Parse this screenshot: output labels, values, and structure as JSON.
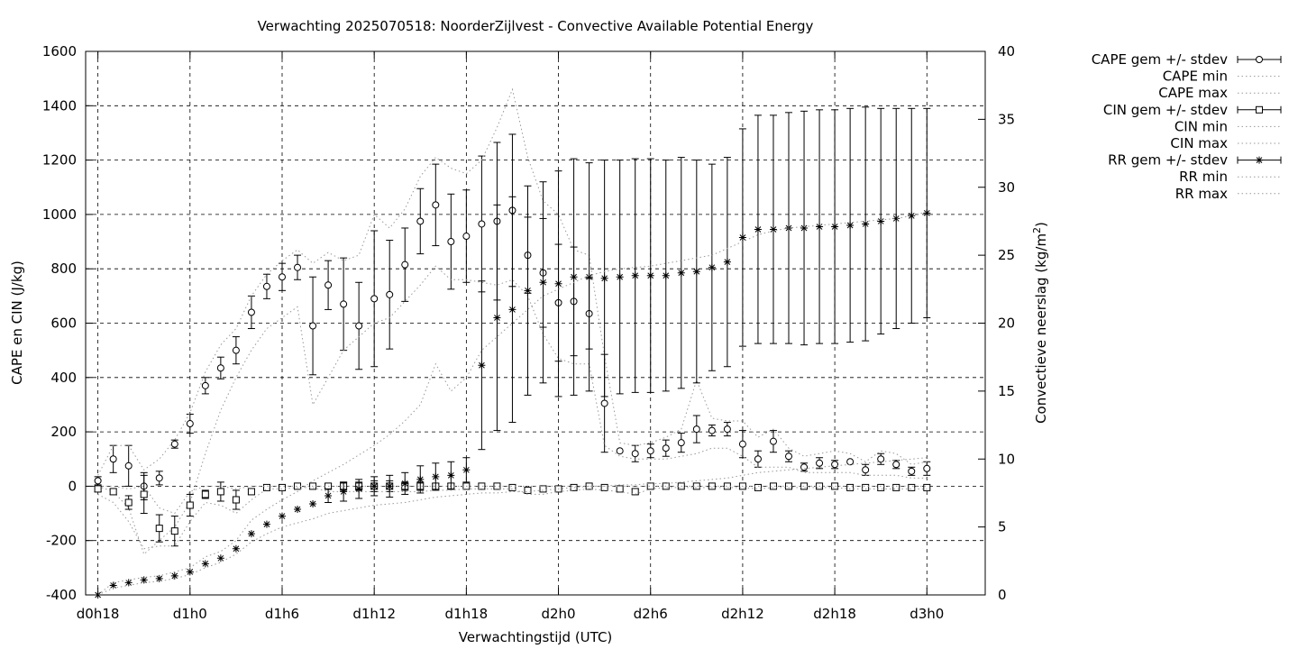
{
  "chart_data": {
    "type": "line",
    "title": "Verwachting 2025070518: NoorderZijlvest - Convective Available Potential Energy",
    "xlabel": "Verwachtingstijd (UTC)",
    "ylabel": "CAPE en CIN (J/kg)",
    "y2label": "Convectieve neerslag (kg/m",
    "y2label_sup": "2",
    "y2label_end": ")",
    "x_unit": "hours after d0h18",
    "xlim": [
      -0.8,
      57.8
    ],
    "ylim": [
      -400,
      1600
    ],
    "y2lim": [
      0,
      40
    ],
    "grid": true,
    "legend_position": "outside-right",
    "x_ticks": [
      {
        "x": 0,
        "label": "d0h18"
      },
      {
        "x": 6,
        "label": "d1h0"
      },
      {
        "x": 12,
        "label": "d1h6"
      },
      {
        "x": 18,
        "label": "d1h12"
      },
      {
        "x": 24,
        "label": "d1h18"
      },
      {
        "x": 30,
        "label": "d2h0"
      },
      {
        "x": 36,
        "label": "d2h6"
      },
      {
        "x": 42,
        "label": "d2h12"
      },
      {
        "x": 48,
        "label": "d2h18"
      },
      {
        "x": 54,
        "label": "d3h0"
      }
    ],
    "y_ticks": [
      "-400",
      "-200",
      "0",
      "200",
      "400",
      "600",
      "800",
      "1000",
      "1200",
      "1400",
      "1600"
    ],
    "y2_ticks": [
      "0",
      "5",
      "10",
      "15",
      "20",
      "25",
      "30",
      "35",
      "40"
    ],
    "legend": [
      "CAPE gem +/- stdev",
      "CAPE min",
      "CAPE max",
      "CIN gem +/- stdev",
      "CIN min",
      "CIN max",
      "RR gem +/- stdev",
      "RR min",
      "RR max"
    ],
    "series": [
      {
        "name": "CAPE gem +/- stdev",
        "axis": "y",
        "marker": "circle",
        "x": [
          0,
          1,
          2,
          3,
          4,
          5,
          6,
          7,
          8,
          9,
          10,
          11,
          12,
          13,
          14,
          15,
          16,
          17,
          18,
          19,
          20,
          21,
          22,
          23,
          24,
          25,
          26,
          27,
          28,
          29,
          30,
          31,
          32,
          33,
          34,
          35,
          36,
          37,
          38,
          39,
          40,
          41,
          42,
          43,
          44,
          45,
          46,
          47,
          48,
          49,
          50,
          51,
          52,
          53,
          54
        ],
        "y": [
          20,
          100,
          75,
          0,
          30,
          155,
          230,
          370,
          435,
          500,
          640,
          735,
          770,
          805,
          590,
          740,
          670,
          590,
          690,
          705,
          815,
          975,
          1035,
          900,
          920,
          965,
          975,
          1015,
          850,
          785,
          675,
          680,
          635,
          305,
          130,
          120,
          130,
          140,
          160,
          210,
          205,
          210,
          155,
          100,
          165,
          110,
          70,
          85,
          80,
          90,
          60,
          100,
          80,
          55,
          65
        ],
        "err": [
          15,
          50,
          75,
          50,
          25,
          15,
          35,
          30,
          40,
          50,
          60,
          45,
          50,
          45,
          180,
          90,
          170,
          160,
          250,
          200,
          135,
          120,
          150,
          175,
          170,
          250,
          290,
          280,
          140,
          200,
          215,
          200,
          130,
          180,
          0,
          30,
          25,
          30,
          35,
          50,
          20,
          25,
          50,
          30,
          40,
          20,
          15,
          20,
          15,
          0,
          20,
          20,
          15,
          15,
          25
        ]
      },
      {
        "name": "CAPE min",
        "axis": "y",
        "marker": "none",
        "x": [
          0,
          1,
          2,
          3,
          4,
          5,
          6,
          7,
          8,
          9,
          10,
          11,
          12,
          13,
          14,
          15,
          16,
          17,
          18,
          19,
          20,
          21,
          22,
          23,
          24,
          25,
          26,
          27,
          28,
          29,
          30,
          31,
          32,
          33,
          34,
          35,
          36,
          37,
          38,
          39,
          40,
          41,
          42,
          43,
          44,
          45,
          46,
          47,
          48,
          49,
          50,
          51,
          52,
          53,
          54
        ],
        "y": [
          0,
          -20,
          -80,
          -250,
          -200,
          -150,
          -60,
          120,
          280,
          400,
          500,
          580,
          620,
          660,
          300,
          400,
          500,
          550,
          600,
          620,
          680,
          740,
          810,
          760,
          760,
          750,
          740,
          760,
          700,
          560,
          470,
          450,
          450,
          150,
          110,
          100,
          100,
          100,
          110,
          120,
          140,
          140,
          110,
          70,
          70,
          70,
          50,
          50,
          50,
          50,
          40,
          40,
          40,
          30,
          30
        ]
      },
      {
        "name": "CAPE max",
        "axis": "y",
        "marker": "none",
        "x": [
          0,
          1,
          2,
          3,
          4,
          5,
          6,
          7,
          8,
          9,
          10,
          11,
          12,
          13,
          14,
          15,
          16,
          17,
          18,
          19,
          20,
          21,
          22,
          23,
          24,
          25,
          26,
          27,
          28,
          29,
          30,
          31,
          32,
          33,
          34,
          35,
          36,
          37,
          38,
          39,
          40,
          41,
          42,
          43,
          44,
          45,
          46,
          47,
          48,
          49,
          50,
          51,
          52,
          53,
          54
        ],
        "y": [
          40,
          150,
          150,
          60,
          100,
          170,
          270,
          420,
          520,
          580,
          700,
          780,
          830,
          870,
          820,
          860,
          830,
          850,
          1000,
          950,
          1020,
          1140,
          1210,
          1170,
          1150,
          1200,
          1320,
          1460,
          1210,
          1050,
          1000,
          870,
          850,
          480,
          160,
          150,
          160,
          180,
          210,
          390,
          250,
          240,
          240,
          180,
          210,
          140,
          110,
          120,
          130,
          120,
          90,
          130,
          120,
          80,
          90
        ]
      },
      {
        "name": "CIN gem +/- stdev",
        "axis": "y",
        "marker": "square",
        "x": [
          0,
          1,
          2,
          3,
          4,
          5,
          6,
          7,
          8,
          9,
          10,
          11,
          12,
          13,
          14,
          15,
          16,
          17,
          18,
          19,
          20,
          21,
          22,
          23,
          24,
          25,
          26,
          27,
          28,
          29,
          30,
          31,
          32,
          33,
          34,
          35,
          36,
          37,
          38,
          39,
          40,
          41,
          42,
          43,
          44,
          45,
          46,
          47,
          48,
          49,
          50,
          51,
          52,
          53,
          54
        ],
        "y": [
          -10,
          -20,
          -60,
          -30,
          -155,
          -165,
          -70,
          -30,
          -20,
          -50,
          -20,
          -5,
          -5,
          0,
          0,
          0,
          0,
          0,
          0,
          0,
          0,
          0,
          0,
          0,
          0,
          0,
          0,
          -5,
          -15,
          -10,
          -10,
          -5,
          0,
          -5,
          -10,
          -20,
          0,
          0,
          0,
          0,
          0,
          0,
          0,
          -5,
          0,
          0,
          0,
          0,
          0,
          -5,
          -5,
          -5,
          -5,
          -5,
          -5
        ],
        "err": [
          10,
          10,
          25,
          70,
          50,
          55,
          40,
          15,
          35,
          35,
          10,
          0,
          0,
          0,
          0,
          10,
          15,
          15,
          20,
          20,
          15,
          15,
          10,
          10,
          0,
          0,
          0,
          0,
          5,
          5,
          5,
          5,
          0,
          0,
          0,
          10,
          0,
          0,
          0,
          0,
          0,
          0,
          0,
          0,
          0,
          0,
          0,
          0,
          0,
          0,
          0,
          0,
          0,
          0,
          0
        ]
      },
      {
        "name": "CIN min",
        "axis": "y",
        "marker": "none",
        "x": [
          0,
          1,
          2,
          3,
          4,
          5,
          6,
          7,
          8,
          9,
          10,
          11,
          12,
          13,
          14,
          15,
          16,
          17,
          18,
          19,
          20,
          21,
          22,
          23,
          24,
          25,
          26,
          27,
          28,
          29,
          30,
          31,
          32,
          33,
          34,
          35,
          36,
          37,
          38,
          39,
          40,
          41,
          42,
          43,
          44,
          45,
          46,
          47,
          48,
          49,
          50,
          51,
          52,
          53,
          54
        ],
        "y": [
          -30,
          -60,
          -130,
          -230,
          -220,
          -220,
          -130,
          -60,
          -70,
          -100,
          -50,
          -10,
          -10,
          -5,
          -5,
          -20,
          -20,
          -20,
          -20,
          -20,
          -20,
          -20,
          -15,
          -15,
          -10,
          -10,
          -10,
          -10,
          -30,
          -30,
          -20,
          -15,
          -10,
          -15,
          -20,
          -30,
          -10,
          -5,
          -5,
          -5,
          -5,
          -5,
          -5,
          -10,
          -5,
          -5,
          -5,
          -5,
          -5,
          -10,
          -10,
          -10,
          -10,
          -10,
          -10
        ]
      },
      {
        "name": "CIN max",
        "axis": "y",
        "marker": "none",
        "x": [
          0,
          1,
          2,
          3,
          4,
          5,
          6,
          7,
          8,
          9,
          10,
          11,
          12,
          13,
          14,
          15,
          16,
          17,
          18,
          19,
          20,
          21,
          22,
          23,
          24,
          25,
          26,
          27,
          28,
          29,
          30,
          31,
          32,
          33,
          34,
          35,
          36,
          37,
          38,
          39,
          40,
          41,
          42,
          43,
          44,
          45,
          46,
          47,
          48,
          49,
          50,
          51,
          52,
          53,
          54
        ],
        "y": [
          0,
          0,
          -10,
          0,
          -80,
          -100,
          -20,
          0,
          0,
          -10,
          0,
          0,
          0,
          0,
          0,
          0,
          0,
          0,
          0,
          0,
          0,
          0,
          0,
          0,
          0,
          0,
          0,
          0,
          0,
          0,
          0,
          0,
          0,
          0,
          0,
          0,
          0,
          0,
          0,
          0,
          0,
          0,
          0,
          0,
          0,
          0,
          0,
          0,
          0,
          0,
          0,
          0,
          0,
          0,
          0
        ]
      },
      {
        "name": "RR gem +/- stdev",
        "axis": "y2",
        "marker": "star",
        "x": [
          0,
          1,
          2,
          3,
          4,
          5,
          6,
          7,
          8,
          9,
          10,
          11,
          12,
          13,
          14,
          15,
          16,
          17,
          18,
          19,
          20,
          21,
          22,
          23,
          24,
          25,
          26,
          27,
          28,
          29,
          30,
          31,
          32,
          33,
          34,
          35,
          36,
          37,
          38,
          39,
          40,
          41,
          42,
          43,
          44,
          45,
          46,
          47,
          48,
          49,
          50,
          51,
          52,
          53,
          54
        ],
        "y": [
          0,
          0.7,
          0.9,
          1.1,
          1.2,
          1.4,
          1.7,
          2.3,
          2.7,
          3.4,
          4.5,
          5.2,
          5.8,
          6.3,
          6.7,
          7.3,
          7.6,
          7.8,
          8.0,
          8.0,
          8.2,
          8.5,
          8.7,
          8.8,
          9.2,
          16.9,
          20.4,
          21.0,
          22.4,
          23.0,
          22.9,
          23.4,
          23.4,
          23.3,
          23.4,
          23.5,
          23.5,
          23.5,
          23.7,
          23.8,
          24.1,
          24.5,
          26.3,
          26.9,
          26.9,
          27.0,
          27.0,
          27.1,
          27.1,
          27.2,
          27.3,
          27.5,
          27.7,
          27.9,
          28.1
        ],
        "err": [
          0,
          0,
          0,
          0,
          0,
          0,
          0,
          0,
          0,
          0,
          0,
          0,
          0,
          0,
          0,
          0.5,
          0.7,
          0.7,
          0.7,
          0.8,
          0.8,
          1.0,
          1.0,
          1.0,
          0.9,
          6.2,
          8.3,
          8.3,
          7.7,
          7.4,
          8.3,
          8.7,
          8.4,
          8.7,
          8.6,
          8.6,
          8.6,
          8.5,
          8.5,
          8.2,
          7.6,
          7.7,
          8.0,
          8.4,
          8.4,
          8.5,
          8.6,
          8.6,
          8.6,
          8.6,
          8.6,
          8.3,
          8.1,
          7.9,
          7.7
        ]
      },
      {
        "name": "RR min",
        "axis": "y2",
        "marker": "none",
        "x": [
          0,
          1,
          2,
          3,
          4,
          5,
          6,
          7,
          8,
          9,
          10,
          11,
          12,
          13,
          14,
          15,
          16,
          17,
          18,
          19,
          20,
          21,
          22,
          23,
          24,
          25,
          26,
          27,
          28,
          29,
          30,
          31,
          32,
          33,
          34,
          35,
          36,
          37,
          38,
          39,
          40,
          41,
          42,
          43,
          44,
          45,
          46,
          47,
          48,
          49,
          50,
          51,
          52,
          53,
          54
        ],
        "y": [
          0,
          0.5,
          0.7,
          0.9,
          1.0,
          1.2,
          1.5,
          2.0,
          2.4,
          3.0,
          3.9,
          4.5,
          5.0,
          5.3,
          5.6,
          6.0,
          6.2,
          6.4,
          6.6,
          6.7,
          6.8,
          7.0,
          7.2,
          7.3,
          7.4,
          7.5,
          7.5,
          7.6,
          7.6,
          7.7,
          7.8,
          7.9,
          8.0,
          8.0,
          8.1,
          8.1,
          8.2,
          8.2,
          8.3,
          8.4,
          8.5,
          8.6,
          8.8,
          9.0,
          9.1,
          9.2,
          9.3,
          9.4,
          9.5,
          9.6,
          9.7,
          9.8,
          9.9,
          10.0,
          10.1
        ]
      },
      {
        "name": "RR max",
        "axis": "y2",
        "marker": "none",
        "x": [
          0,
          1,
          2,
          3,
          4,
          5,
          6,
          7,
          8,
          9,
          10,
          11,
          12,
          13,
          14,
          15,
          16,
          17,
          18,
          19,
          20,
          21,
          22,
          23,
          24,
          25,
          26,
          27,
          28,
          29,
          30,
          31,
          32,
          33,
          34,
          35,
          36,
          37,
          38,
          39,
          40,
          41,
          42,
          43,
          44,
          45,
          46,
          47,
          48,
          49,
          50,
          51,
          52,
          53,
          54
        ],
        "y": [
          0,
          0.9,
          1.1,
          1.3,
          1.4,
          1.7,
          2.0,
          2.8,
          3.2,
          4.0,
          5.5,
          6.3,
          7.0,
          7.6,
          8.4,
          9.0,
          9.6,
          10.3,
          11.0,
          11.8,
          12.8,
          14.0,
          17.0,
          15.0,
          16.0,
          18.0,
          19.0,
          20.0,
          21.0,
          22.0,
          22.5,
          23.0,
          23.5,
          23.8,
          24.0,
          24.1,
          24.2,
          24.4,
          24.6,
          24.8,
          25.0,
          25.5,
          26.0,
          26.5,
          26.8,
          27.0,
          27.1,
          27.2,
          27.3,
          27.4,
          27.5,
          27.6,
          27.7,
          27.9,
          28.2
        ]
      }
    ]
  }
}
